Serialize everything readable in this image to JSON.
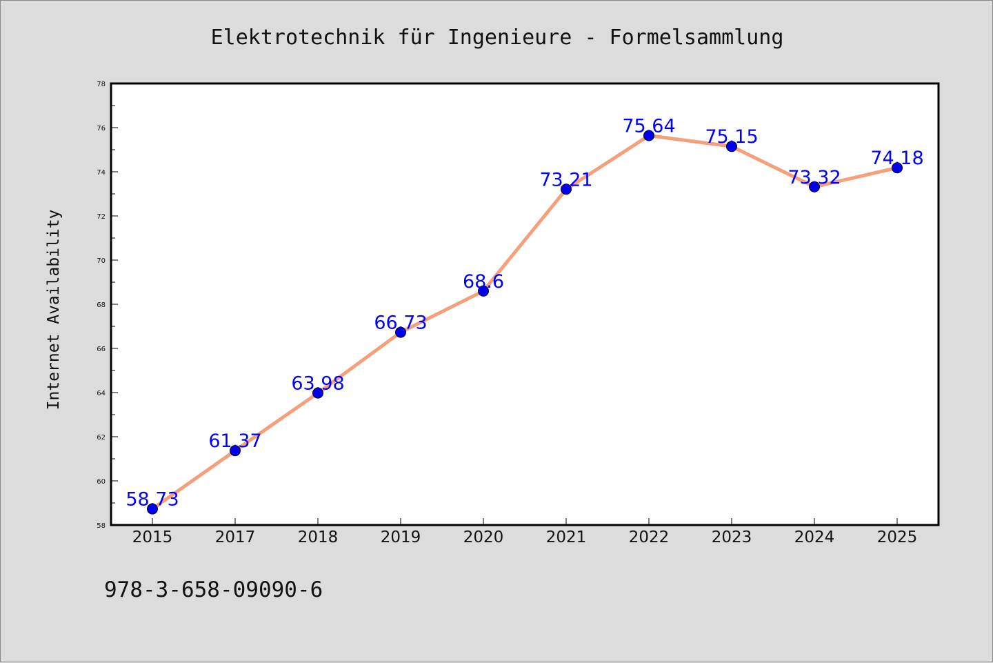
{
  "chart_data": {
    "type": "line",
    "title": "Elektrotechnik für Ingenieure - Formelsammlung",
    "xlabel": "",
    "ylabel": "Internet Availability",
    "categories": [
      "2015",
      "2017",
      "2018",
      "2019",
      "2020",
      "2021",
      "2022",
      "2023",
      "2024",
      "2025"
    ],
    "series": [
      {
        "values": [
          58.73,
          61.37,
          63.98,
          66.73,
          68.6,
          73.21,
          75.64,
          75.15,
          73.32,
          74.18
        ]
      }
    ],
    "data_labels": [
      "58.73",
      "61.37",
      "63.98",
      "66.73",
      "68.6",
      "73.21",
      "75.64",
      "75.15",
      "73.32",
      "74.18"
    ],
    "ylim": [
      58,
      78
    ],
    "yticks": [
      "58",
      "60",
      "62",
      "64",
      "66",
      "68",
      "70",
      "72",
      "74",
      "76",
      "78"
    ],
    "grid": false,
    "legend": "none",
    "colors": {
      "line": "#f4a07c",
      "marker": "#0000ee",
      "label": "#0000ff",
      "background": "#dcdcdc",
      "plot": "#ffffff"
    }
  },
  "footer": {
    "isbn": "978-3-658-09090-6"
  }
}
